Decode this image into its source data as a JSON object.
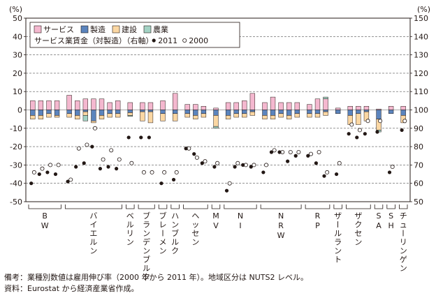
{
  "chart_data": {
    "type": "bar",
    "left_axis": {
      "unit": "(%)",
      "ylim": [
        -50,
        50
      ],
      "ticks": [
        50,
        40,
        30,
        20,
        10,
        0,
        -10,
        -20,
        -30,
        -40,
        -50
      ]
    },
    "right_axis": {
      "unit": "(%)",
      "ylim": [
        50,
        150
      ],
      "ticks": [
        150,
        140,
        130,
        120,
        110,
        100,
        90,
        80,
        70,
        60,
        50
      ]
    },
    "grid": "dashed horizontal at every 10",
    "legend": {
      "placement": "top-left",
      "entries": [
        {
          "label": "サービス",
          "color": "#f4b8cf"
        },
        {
          "label": "製造",
          "color": "#5b84bd"
        },
        {
          "label": "建設",
          "color": "#fbd7a3"
        },
        {
          "label": "農業",
          "color": "#a3d2c4"
        }
      ],
      "wage_label": "サービス業賃金（対製造）（右軸）",
      "wage_2011": "2011",
      "wage_2000": "2000"
    },
    "groups": [
      {
        "label": "BW",
        "n": 4
      },
      {
        "label": "バイエルン",
        "n": 7
      },
      {
        "label": "ベルリン",
        "n": 1
      },
      {
        "label": "ブランデンブルク",
        "n": 2
      },
      {
        "label": "ブレーメン",
        "n": 1
      },
      {
        "label": "ハンブルク",
        "n": 1
      },
      {
        "label": "ヘッセン",
        "n": 3
      },
      {
        "label": "MV",
        "n": 1
      },
      {
        "label": "NI",
        "n": 4
      },
      {
        "label": "NRW",
        "n": 5
      },
      {
        "label": "RP",
        "n": 3
      },
      {
        "label": "ザールラント",
        "n": 1
      },
      {
        "label": "ザクセン",
        "n": 3
      },
      {
        "label": "SA",
        "n": 1
      },
      {
        "label": "SH",
        "n": 1
      },
      {
        "label": "チューリンゲン",
        "n": 1
      }
    ],
    "series": [
      {
        "name": "サービス",
        "values": [
          5,
          5,
          5,
          5,
          8,
          5,
          6,
          6,
          6,
          4,
          5,
          4,
          4,
          4,
          5,
          9,
          3,
          3,
          2,
          1,
          4,
          4,
          5,
          9,
          4,
          7,
          4,
          4,
          4,
          3,
          6,
          6,
          1,
          2,
          2,
          2,
          0.5,
          2,
          2
        ]
      },
      {
        "name": "製造",
        "values": [
          -3,
          -3,
          -2,
          -3,
          -2,
          -3,
          -1,
          -6,
          -3,
          -2,
          -2,
          -1.5,
          -1,
          -1,
          -2,
          -2,
          -2,
          -3,
          -2,
          -3,
          -3,
          -2,
          -2,
          -1,
          -3,
          -3,
          -2,
          -3,
          -2,
          -2,
          -2,
          -1,
          -2,
          -3,
          -2,
          -1,
          -5,
          -2,
          -3
        ]
      },
      {
        "name": "建設",
        "values": [
          -2,
          -2,
          -2,
          -1,
          -2,
          -2,
          -2,
          -1,
          -2,
          -2,
          -2,
          -1.5,
          -5,
          -6,
          -4,
          -4,
          -2,
          -2,
          -2,
          -6,
          -2,
          -2,
          -2,
          -2,
          -2,
          -2,
          -2,
          -2,
          -2,
          -2,
          -2,
          -2,
          0,
          -5,
          -6,
          -5,
          -6,
          0,
          -4
        ]
      },
      {
        "name": "農業",
        "values": [
          0,
          0,
          0,
          0,
          0,
          0,
          -3,
          0,
          0,
          0,
          0,
          -0.5,
          0,
          0,
          0,
          0,
          0,
          0,
          0,
          -1,
          0,
          0,
          0,
          0,
          0,
          0,
          0,
          0,
          0,
          0,
          0,
          1,
          0,
          0,
          0,
          0,
          -1,
          0,
          0
        ]
      },
      {
        "name": "2011",
        "axis": "right",
        "values": [
          60,
          65,
          66,
          65,
          61,
          69,
          71,
          80,
          68,
          69,
          68,
          85,
          85,
          85,
          60,
          62,
          79,
          76,
          71,
          69,
          56,
          69,
          70,
          69,
          66,
          77,
          77,
          72,
          75,
          75,
          71,
          64,
          65,
          87,
          85,
          87,
          88,
          66,
          89
        ]
      },
      {
        "name": "2000",
        "axis": "right",
        "values": [
          66,
          68,
          70,
          70,
          62,
          79,
          81,
          90,
          73,
          78,
          73,
          71,
          66,
          66,
          66,
          66,
          79,
          74,
          72,
          71,
          60,
          71,
          70,
          70,
          70,
          78,
          77,
          77,
          77,
          76,
          77,
          66,
          71,
          92,
          89,
          94,
          94,
          69,
          94
        ]
      }
    ]
  },
  "notes": [
    "備考：業種別数値は雇用伸び率（2000 年から 2011 年）。地域区分は NUTS2 レベル。",
    "資料：Eurostat から経済産業省作成。"
  ]
}
